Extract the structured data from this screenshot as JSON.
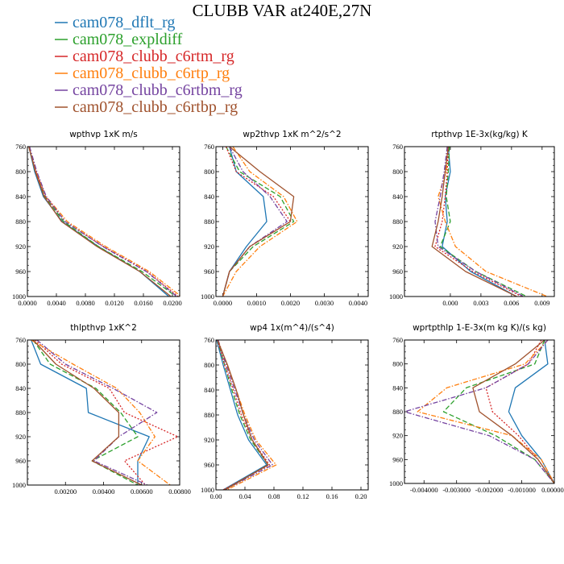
{
  "chart_data": {
    "type": "line",
    "title": "CLUBB VAR at240E,27N",
    "legend_position": "top-left",
    "series": [
      {
        "name": "cam078_dflt_rg",
        "color": "#1f77b4",
        "dash": "solid"
      },
      {
        "name": "cam078_expldiff",
        "color": "#2ca02c",
        "dash": "longdash"
      },
      {
        "name": "cam078_clubb_c6rtm_rg",
        "color": "#d62728",
        "dash": "dot"
      },
      {
        "name": "cam078_clubb_c6rtp_rg",
        "color": "#ff7f0e",
        "dash": "dashdot"
      },
      {
        "name": "cam078_clubb_c6rtbm_rg",
        "color": "#7544a0",
        "dash": "dashdot"
      },
      {
        "name": "cam078_clubb_c6rtbp_rg",
        "color": "#a0522d",
        "dash": "solid"
      }
    ],
    "y_axis": {
      "reversed": true,
      "range": [
        760,
        1000
      ],
      "ticks": [
        760,
        800,
        840,
        880,
        920,
        960,
        1000
      ],
      "tick_labels": [
        "760",
        "800",
        "840",
        "880",
        "920",
        "960",
        "1000"
      ]
    },
    "levels": [
      760,
      800,
      840,
      880,
      920,
      960,
      1000
    ],
    "panels": [
      {
        "title": "wpthvp   1xK m/s",
        "xlim": [
          0,
          0.021
        ],
        "xticks": [
          0,
          0.004,
          0.008,
          0.012,
          0.016,
          0.02
        ],
        "xtick_labels": [
          "0.0000",
          "0.0040",
          "0.0080",
          "0.0120",
          "0.0160",
          "0.0200"
        ],
        "x": [
          [
            0.0002,
            0.001,
            0.0022,
            0.0048,
            0.0098,
            0.0155,
            0.0195
          ],
          [
            0.0002,
            0.0011,
            0.0024,
            0.005,
            0.0098,
            0.0158,
            0.0205
          ],
          [
            0.0002,
            0.0012,
            0.0025,
            0.0052,
            0.0105,
            0.0165,
            0.0208
          ],
          [
            0.0002,
            0.0012,
            0.0026,
            0.0055,
            0.0108,
            0.0168,
            0.0212
          ],
          [
            0.0003,
            0.0013,
            0.0026,
            0.0052,
            0.0104,
            0.0164,
            0.0206
          ],
          [
            0.0002,
            0.0011,
            0.0023,
            0.0047,
            0.0096,
            0.0155,
            0.0198
          ]
        ]
      },
      {
        "title": "wp2thvp   1xK m^2/s^2",
        "xlim": [
          -0.0002,
          0.0043
        ],
        "xticks": [
          0,
          0.001,
          0.002,
          0.003,
          0.004
        ],
        "xtick_labels": [
          "0.0000",
          "0.0010",
          "0.0020",
          "0.0030",
          "0.0040"
        ],
        "x": [
          [
            0.0002,
            0.0004,
            0.0012,
            0.0013,
            0.0007,
            0.0002,
            0.0
          ],
          [
            0.0001,
            0.0005,
            0.0017,
            0.0021,
            0.0009,
            0.0002,
            0.0
          ],
          [
            0.0001,
            0.0004,
            0.0015,
            0.002,
            0.0008,
            0.0002,
            0.0
          ],
          [
            0.0003,
            0.0008,
            0.0018,
            0.0022,
            0.0011,
            0.0004,
            0.0
          ],
          [
            0.0002,
            0.0006,
            0.0014,
            0.0019,
            0.0008,
            0.0002,
            0.0
          ],
          [
            0.0002,
            0.0011,
            0.0021,
            0.002,
            0.0008,
            0.0002,
            0.0
          ]
        ]
      },
      {
        "title": "rtpthvp   1E-3x(kg/kg) K",
        "xlim": [
          -0.0045,
          0.0102
        ],
        "xticks": [
          0,
          0.003,
          0.006,
          0.009
        ],
        "xtick_labels": [
          "0.000",
          "0.003",
          "0.006",
          "0.009"
        ],
        "x": [
          [
            -0.0002,
            0.0,
            -0.0005,
            -0.0003,
            -0.0008,
            0.002,
            0.0065
          ],
          [
            -0.0001,
            -0.0002,
            -0.0004,
            0.0,
            -0.001,
            0.0025,
            0.0075
          ],
          [
            -0.0002,
            -0.0003,
            -0.0005,
            -0.0008,
            -0.0015,
            0.0022,
            0.007
          ],
          [
            -0.0003,
            -0.0004,
            -0.0012,
            -0.0005,
            0.0005,
            0.0035,
            0.0095
          ],
          [
            -0.0003,
            -0.0006,
            -0.001,
            -0.0015,
            -0.0012,
            0.0025,
            0.0072
          ],
          [
            -0.0002,
            -0.0005,
            -0.0008,
            -0.0012,
            -0.0018,
            0.0015,
            0.0065
          ]
        ]
      },
      {
        "title": "thlpthvp   1xK^2",
        "xlim": [
          0.0,
          0.008
        ],
        "xticks": [
          0.002,
          0.004,
          0.006,
          0.008
        ],
        "xtick_labels": [
          "0.00200",
          "0.00400",
          "0.00600",
          "0.00800"
        ],
        "x": [
          [
            0.0002,
            0.0007,
            0.0031,
            0.0032,
            0.0064,
            0.0058,
            0.0058
          ],
          [
            0.0003,
            0.0012,
            0.0036,
            0.0049,
            0.0058,
            0.0034,
            0.0058
          ],
          [
            0.0004,
            0.0018,
            0.0043,
            0.0051,
            0.0079,
            0.0051,
            0.0062
          ],
          [
            0.0002,
            0.0024,
            0.0047,
            0.0059,
            0.0067,
            0.0058,
            0.0075
          ],
          [
            0.0005,
            0.002,
            0.0045,
            0.0068,
            0.0048,
            0.0035,
            0.0063
          ],
          [
            0.0003,
            0.0015,
            0.0035,
            0.0048,
            0.0048,
            0.0034,
            0.006
          ]
        ]
      },
      {
        "title": "wp4   1x(m^4)/(s^4)",
        "xlim": [
          0.0,
          0.21
        ],
        "xticks": [
          0.0,
          0.04,
          0.08,
          0.12,
          0.16,
          0.2
        ],
        "xtick_labels": [
          "0.00",
          "0.04",
          "0.08",
          "0.12",
          "0.16",
          "0.20"
        ],
        "x": [
          [
            0.001,
            0.01,
            0.02,
            0.03,
            0.045,
            0.07,
            0.01
          ],
          [
            0.002,
            0.012,
            0.022,
            0.033,
            0.048,
            0.072,
            0.012
          ],
          [
            0.002,
            0.012,
            0.024,
            0.035,
            0.05,
            0.074,
            0.01
          ],
          [
            0.003,
            0.015,
            0.028,
            0.04,
            0.055,
            0.083,
            0.015
          ],
          [
            0.003,
            0.014,
            0.026,
            0.038,
            0.053,
            0.078,
            0.012
          ],
          [
            0.002,
            0.016,
            0.028,
            0.038,
            0.05,
            0.072,
            0.012
          ]
        ]
      },
      {
        "title": "wprtpthlp   1-E-3x(m kg K)/(s kg)",
        "xlim": [
          -0.0046,
          0.0
        ],
        "xticks": [
          -0.004,
          -0.003,
          -0.002,
          -0.001,
          0.0
        ],
        "xtick_labels": [
          "-0.004000",
          "-0.003000",
          "-0.002000",
          "-0.001000",
          "0.000000"
        ],
        "x": [
          [
            -0.0003,
            -0.0002,
            -0.0012,
            -0.0014,
            -0.001,
            -0.0004,
            0.0
          ],
          [
            -0.0003,
            -0.0006,
            -0.0027,
            -0.0034,
            -0.0018,
            -0.0006,
            0.0
          ],
          [
            -0.0004,
            -0.0008,
            -0.0021,
            -0.0019,
            -0.0011,
            -0.0005,
            0.0
          ],
          [
            -0.0002,
            -0.0009,
            -0.0033,
            -0.0042,
            -0.0013,
            -0.0004,
            0.0
          ],
          [
            -0.0002,
            -0.0008,
            -0.0021,
            -0.0046,
            -0.002,
            -0.0006,
            0.0
          ],
          [
            -0.0003,
            -0.0012,
            -0.0025,
            -0.0023,
            -0.0013,
            -0.0005,
            0.0
          ]
        ]
      }
    ]
  }
}
